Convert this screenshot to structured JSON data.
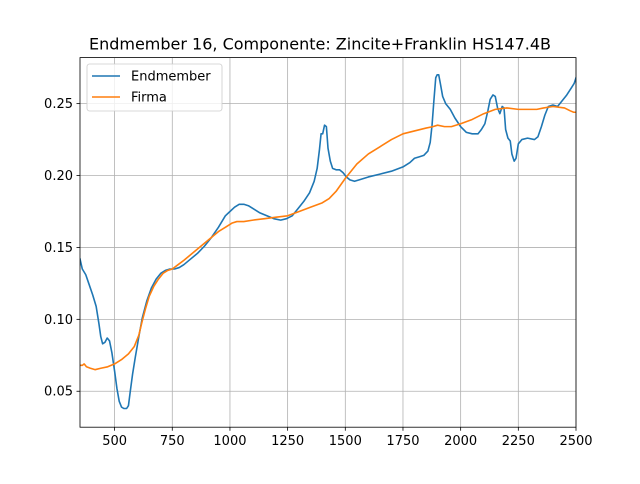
{
  "chart_data": {
    "type": "line",
    "title": "Endmember 16, Componente: Zincite+Franklin HS147.4B",
    "xlabel": "",
    "ylabel": "",
    "xlim": [
      350,
      2500
    ],
    "ylim": [
      0.025,
      0.282
    ],
    "xticks": [
      500,
      750,
      1000,
      1250,
      1500,
      1750,
      2000,
      2250,
      2500
    ],
    "yticks": [
      0.05,
      0.1,
      0.15,
      0.2,
      0.25
    ],
    "ytick_labels": [
      "0.05",
      "0.10",
      "0.15",
      "0.20",
      "0.25"
    ],
    "grid": true,
    "legend_position": "upper-left",
    "series": [
      {
        "name": "Endmember",
        "color": "#1f77b4",
        "points": [
          [
            350,
            0.142
          ],
          [
            360,
            0.135
          ],
          [
            375,
            0.131
          ],
          [
            390,
            0.124
          ],
          [
            405,
            0.117
          ],
          [
            420,
            0.109
          ],
          [
            432,
            0.097
          ],
          [
            440,
            0.088
          ],
          [
            448,
            0.083
          ],
          [
            458,
            0.084
          ],
          [
            468,
            0.087
          ],
          [
            478,
            0.085
          ],
          [
            488,
            0.077
          ],
          [
            500,
            0.064
          ],
          [
            510,
            0.052
          ],
          [
            520,
            0.043
          ],
          [
            530,
            0.039
          ],
          [
            540,
            0.038
          ],
          [
            552,
            0.038
          ],
          [
            560,
            0.04
          ],
          [
            568,
            0.05
          ],
          [
            578,
            0.062
          ],
          [
            590,
            0.074
          ],
          [
            605,
            0.088
          ],
          [
            620,
            0.101
          ],
          [
            640,
            0.113
          ],
          [
            660,
            0.122
          ],
          [
            680,
            0.128
          ],
          [
            700,
            0.132
          ],
          [
            720,
            0.134
          ],
          [
            740,
            0.135
          ],
          [
            760,
            0.135
          ],
          [
            780,
            0.136
          ],
          [
            800,
            0.138
          ],
          [
            830,
            0.142
          ],
          [
            860,
            0.146
          ],
          [
            890,
            0.151
          ],
          [
            920,
            0.157
          ],
          [
            950,
            0.164
          ],
          [
            980,
            0.172
          ],
          [
            1000,
            0.175
          ],
          [
            1020,
            0.178
          ],
          [
            1040,
            0.18
          ],
          [
            1060,
            0.18
          ],
          [
            1080,
            0.179
          ],
          [
            1100,
            0.177
          ],
          [
            1130,
            0.174
          ],
          [
            1160,
            0.172
          ],
          [
            1190,
            0.17
          ],
          [
            1220,
            0.169
          ],
          [
            1245,
            0.17
          ],
          [
            1270,
            0.172
          ],
          [
            1295,
            0.177
          ],
          [
            1320,
            0.182
          ],
          [
            1345,
            0.188
          ],
          [
            1365,
            0.196
          ],
          [
            1378,
            0.205
          ],
          [
            1388,
            0.218
          ],
          [
            1395,
            0.229
          ],
          [
            1402,
            0.229
          ],
          [
            1410,
            0.235
          ],
          [
            1418,
            0.234
          ],
          [
            1425,
            0.219
          ],
          [
            1435,
            0.21
          ],
          [
            1445,
            0.205
          ],
          [
            1460,
            0.204
          ],
          [
            1475,
            0.204
          ],
          [
            1490,
            0.202
          ],
          [
            1505,
            0.199
          ],
          [
            1520,
            0.197
          ],
          [
            1540,
            0.196
          ],
          [
            1560,
            0.197
          ],
          [
            1600,
            0.199
          ],
          [
            1650,
            0.201
          ],
          [
            1700,
            0.203
          ],
          [
            1750,
            0.206
          ],
          [
            1780,
            0.209
          ],
          [
            1800,
            0.212
          ],
          [
            1820,
            0.213
          ],
          [
            1840,
            0.214
          ],
          [
            1858,
            0.217
          ],
          [
            1868,
            0.223
          ],
          [
            1876,
            0.235
          ],
          [
            1884,
            0.252
          ],
          [
            1892,
            0.268
          ],
          [
            1898,
            0.27
          ],
          [
            1905,
            0.27
          ],
          [
            1912,
            0.264
          ],
          [
            1922,
            0.255
          ],
          [
            1935,
            0.25
          ],
          [
            1955,
            0.246
          ],
          [
            1975,
            0.24
          ],
          [
            2000,
            0.234
          ],
          [
            2025,
            0.23
          ],
          [
            2050,
            0.229
          ],
          [
            2075,
            0.229
          ],
          [
            2090,
            0.232
          ],
          [
            2105,
            0.236
          ],
          [
            2118,
            0.245
          ],
          [
            2128,
            0.253
          ],
          [
            2140,
            0.256
          ],
          [
            2150,
            0.255
          ],
          [
            2160,
            0.247
          ],
          [
            2170,
            0.243
          ],
          [
            2180,
            0.248
          ],
          [
            2188,
            0.247
          ],
          [
            2195,
            0.232
          ],
          [
            2205,
            0.226
          ],
          [
            2215,
            0.224
          ],
          [
            2222,
            0.215
          ],
          [
            2232,
            0.21
          ],
          [
            2240,
            0.212
          ],
          [
            2250,
            0.222
          ],
          [
            2265,
            0.225
          ],
          [
            2290,
            0.226
          ],
          [
            2320,
            0.225
          ],
          [
            2335,
            0.227
          ],
          [
            2350,
            0.234
          ],
          [
            2365,
            0.242
          ],
          [
            2380,
            0.248
          ],
          [
            2400,
            0.249
          ],
          [
            2420,
            0.248
          ],
          [
            2440,
            0.252
          ],
          [
            2460,
            0.256
          ],
          [
            2480,
            0.261
          ],
          [
            2492,
            0.264
          ],
          [
            2500,
            0.268
          ]
        ]
      },
      {
        "name": "Firma",
        "color": "#ff7f0e",
        "points": [
          [
            350,
            0.068
          ],
          [
            360,
            0.068
          ],
          [
            368,
            0.069
          ],
          [
            378,
            0.067
          ],
          [
            395,
            0.066
          ],
          [
            415,
            0.065
          ],
          [
            440,
            0.066
          ],
          [
            470,
            0.067
          ],
          [
            500,
            0.069
          ],
          [
            530,
            0.072
          ],
          [
            560,
            0.076
          ],
          [
            585,
            0.081
          ],
          [
            605,
            0.089
          ],
          [
            620,
            0.099
          ],
          [
            635,
            0.108
          ],
          [
            650,
            0.116
          ],
          [
            670,
            0.123
          ],
          [
            690,
            0.128
          ],
          [
            710,
            0.132
          ],
          [
            730,
            0.134
          ],
          [
            750,
            0.135
          ],
          [
            775,
            0.138
          ],
          [
            800,
            0.141
          ],
          [
            830,
            0.145
          ],
          [
            860,
            0.149
          ],
          [
            890,
            0.153
          ],
          [
            920,
            0.157
          ],
          [
            950,
            0.161
          ],
          [
            980,
            0.164
          ],
          [
            1010,
            0.167
          ],
          [
            1030,
            0.168
          ],
          [
            1060,
            0.168
          ],
          [
            1100,
            0.169
          ],
          [
            1150,
            0.17
          ],
          [
            1200,
            0.171
          ],
          [
            1250,
            0.172
          ],
          [
            1300,
            0.175
          ],
          [
            1350,
            0.178
          ],
          [
            1400,
            0.181
          ],
          [
            1430,
            0.184
          ],
          [
            1460,
            0.189
          ],
          [
            1500,
            0.198
          ],
          [
            1550,
            0.208
          ],
          [
            1600,
            0.215
          ],
          [
            1650,
            0.22
          ],
          [
            1700,
            0.225
          ],
          [
            1750,
            0.229
          ],
          [
            1800,
            0.231
          ],
          [
            1850,
            0.233
          ],
          [
            1880,
            0.234
          ],
          [
            1900,
            0.235
          ],
          [
            1930,
            0.234
          ],
          [
            1960,
            0.234
          ],
          [
            2000,
            0.236
          ],
          [
            2050,
            0.239
          ],
          [
            2100,
            0.243
          ],
          [
            2150,
            0.246
          ],
          [
            2200,
            0.247
          ],
          [
            2250,
            0.246
          ],
          [
            2300,
            0.246
          ],
          [
            2330,
            0.246
          ],
          [
            2360,
            0.247
          ],
          [
            2400,
            0.248
          ],
          [
            2450,
            0.247
          ],
          [
            2475,
            0.245
          ],
          [
            2490,
            0.244
          ],
          [
            2500,
            0.244
          ]
        ]
      }
    ]
  }
}
